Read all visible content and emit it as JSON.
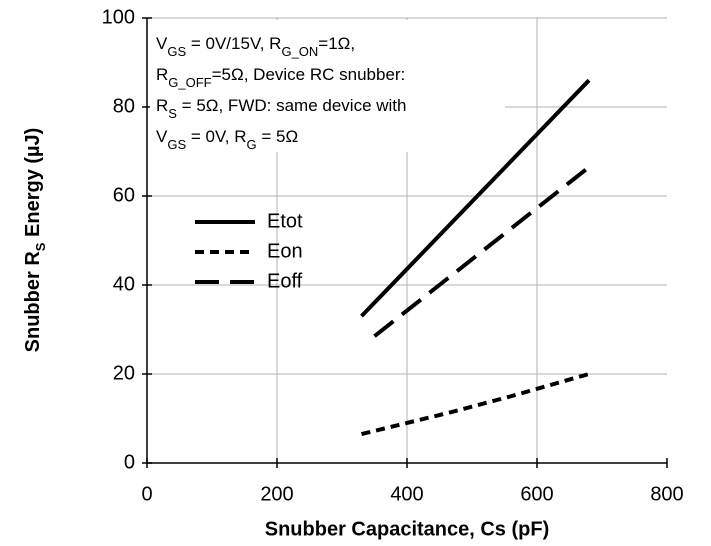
{
  "chart_data": {
    "type": "line",
    "xlabel": "Snubber Capacitance, Cs (pF)",
    "ylabel": [
      "Snubber R",
      "S",
      " Energy (µJ)"
    ],
    "annotation": [
      [
        "V",
        "GS",
        " = 0V/15V, R",
        "G_ON",
        "=1Ω,"
      ],
      [
        "R",
        "G_OFF",
        "=5Ω, Device RC snubber:"
      ],
      [
        "R",
        "S",
        " = 5Ω, FWD: same device with"
      ],
      [
        "V",
        "GS",
        " = 0V, R",
        "G",
        " = 5Ω"
      ]
    ],
    "xlim": [
      0,
      800
    ],
    "xticks": [
      0,
      200,
      400,
      600,
      800
    ],
    "ylim": [
      0,
      100
    ],
    "yticks": [
      0,
      20,
      40,
      60,
      80,
      100
    ],
    "grid": true,
    "legend": "left",
    "series": [
      {
        "name": "Etot",
        "color": "#000000",
        "dash": "solid",
        "x": [
          330,
          680
        ],
        "values": [
          33,
          86
        ]
      },
      {
        "name": "Eon",
        "color": "#000000",
        "dash": "short",
        "x": [
          330,
          400,
          470,
          560,
          680
        ],
        "values": [
          6.5,
          9,
          11.5,
          15,
          20
        ]
      },
      {
        "name": "Eoff",
        "color": "#000000",
        "dash": "long",
        "x": [
          350,
          680
        ],
        "values": [
          28.5,
          66.5
        ]
      }
    ]
  }
}
